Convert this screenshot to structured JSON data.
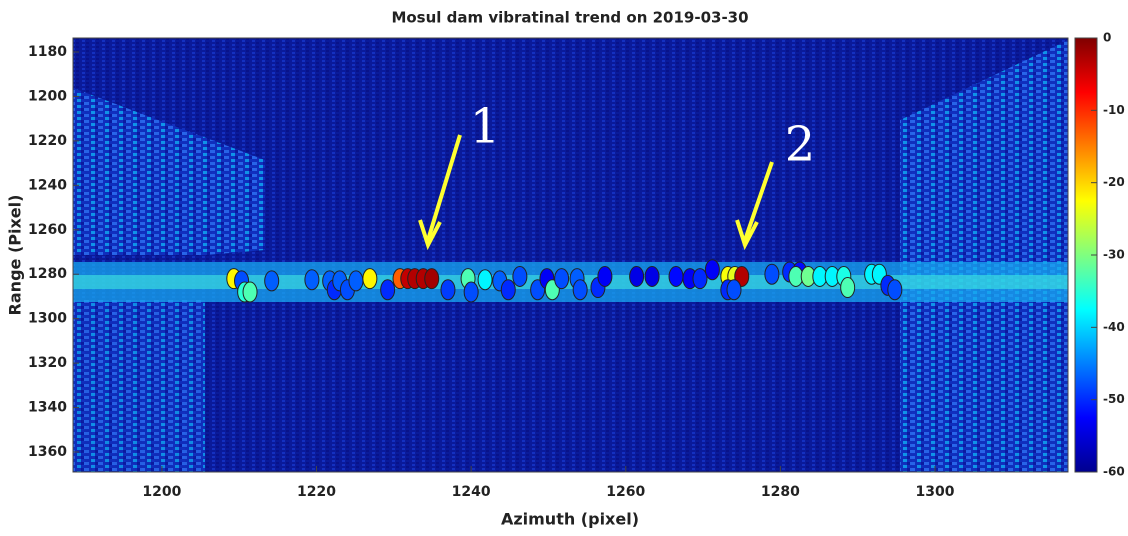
{
  "chart_data": {
    "type": "scatter",
    "title": "Mosul dam vibratinal trend on 2019-03-30",
    "x_label": "Azimuth (pixel)",
    "y_label": "Range (Pixel)",
    "xlim": [
      1188.5,
      1317.2
    ],
    "ylim": [
      1173.7,
      1369
    ],
    "y_reversed": true,
    "xticks": [
      1200,
      1220,
      1240,
      1260,
      1280,
      1300
    ],
    "yticks": [
      1180,
      1200,
      1220,
      1240,
      1260,
      1280,
      1300,
      1320,
      1340,
      1360
    ],
    "colormap": "jet",
    "clim": [
      -60,
      0
    ],
    "cticks": [
      0,
      -10,
      -20,
      -30,
      -40,
      -50,
      -60
    ],
    "annotations": [
      "1",
      "2"
    ],
    "points": {
      "x": [
        1209.3,
        1210.3,
        1210.7,
        1211.4,
        1214.2,
        1219.4,
        1221.7,
        1222.3,
        1223,
        1224,
        1225.1,
        1226.9,
        1229.2,
        1230.8,
        1231.8,
        1232.7,
        1233.8,
        1234.9,
        1237,
        1239.6,
        1240,
        1241.8,
        1243.7,
        1244.8,
        1246.3,
        1248.6,
        1249.8,
        1250.5,
        1251.7,
        1253.7,
        1254.1,
        1256.4,
        1257.3,
        1261.4,
        1263.4,
        1266.5,
        1268.3,
        1269.6,
        1271.2,
        1273.2,
        1274.1,
        1275,
        1273.2,
        1274,
        1278.9,
        1281.2,
        1282.5,
        1282,
        1283.6,
        1285.1,
        1286.7,
        1288.2,
        1288.7,
        1291.8,
        1292.8,
        1293.9,
        1294.8
      ],
      "y": [
        1282,
        1283,
        1288,
        1288,
        1283,
        1282.5,
        1283,
        1287,
        1283,
        1287,
        1283,
        1282,
        1287,
        1282,
        1282,
        1282,
        1282,
        1282,
        1287,
        1282,
        1288,
        1282.5,
        1283,
        1287,
        1281,
        1287,
        1282,
        1287,
        1282,
        1282,
        1287,
        1286,
        1281,
        1281,
        1281,
        1281,
        1282,
        1282,
        1278,
        1281,
        1281,
        1281,
        1287,
        1287,
        1280,
        1279,
        1279,
        1281,
        1281,
        1281,
        1281,
        1281,
        1286,
        1280,
        1280,
        1285,
        1287
      ],
      "c": [
        -22,
        -48,
        -35,
        -33,
        -47,
        -47,
        -47,
        -50,
        -47,
        -48,
        -47,
        -22,
        -50,
        -13,
        -4,
        -3,
        -3,
        -2,
        -49,
        -33,
        -48,
        -38,
        -47,
        -50,
        -48,
        -48,
        -53,
        -33,
        -48,
        -47,
        -48,
        -50,
        -53,
        -54,
        -54,
        -52,
        -53,
        -50,
        -53,
        -23,
        -24,
        -3,
        -50,
        -48,
        -48,
        -50,
        -52,
        -33,
        -31,
        -38,
        -38,
        -36,
        -33,
        -38,
        -38,
        -50,
        -48
      ]
    }
  }
}
